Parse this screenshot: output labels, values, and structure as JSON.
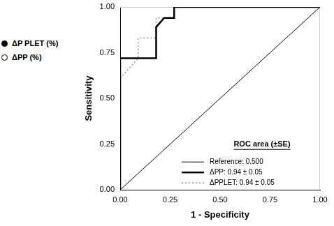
{
  "chart_data": {
    "type": "line",
    "xlabel": "1 - Specificity",
    "ylabel": "Sensitivity",
    "xlim": [
      0,
      1
    ],
    "ylim": [
      0,
      1
    ],
    "xticks": [
      {
        "value": 0,
        "label": "0.00"
      },
      {
        "value": 0.25,
        "label": "0.25"
      },
      {
        "value": 0.5,
        "label": "0.50"
      },
      {
        "value": 0.75,
        "label": "0.75"
      },
      {
        "value": 1,
        "label": "1.00"
      }
    ],
    "yticks": [
      {
        "value": 0,
        "label": "0.00"
      },
      {
        "value": 0.25,
        "label": "0.25"
      },
      {
        "value": 0.5,
        "label": "0.50"
      },
      {
        "value": 0.75,
        "label": "0.75"
      },
      {
        "value": 1,
        "label": "1.00"
      }
    ],
    "grid": false,
    "legend": "lower right",
    "legend_title": "ROC area (±SE)",
    "series": [
      {
        "name": "Reference: 0.500",
        "color": "#000000",
        "line_style": "solid",
        "x": [
          0,
          1
        ],
        "values": [
          0,
          1
        ]
      },
      {
        "name": "ΔPP: 0.94 ± 0.05",
        "color": "#000000",
        "line_style": "solid",
        "x": [
          0,
          0,
          0.18,
          0.18,
          0.22,
          0.27,
          0.27,
          1
        ],
        "values": [
          0,
          0.72,
          0.72,
          0.89,
          0.94,
          0.94,
          1,
          1
        ]
      },
      {
        "name": "ΔPPLET: 0.94 ± 0.05",
        "color": "#999999",
        "line_style": "dotted",
        "x": [
          0,
          0,
          0.09,
          0.09,
          0.18,
          0.18,
          0.27,
          0.27,
          1
        ],
        "values": [
          0,
          0.61,
          0.72,
          0.83,
          0.83,
          0.94,
          0.94,
          1,
          1
        ]
      }
    ]
  },
  "side_legend": [
    {
      "label": "ΔP PLET (%)",
      "marker": "filled"
    },
    {
      "label": "ΔPP (%)",
      "marker": "open"
    }
  ]
}
